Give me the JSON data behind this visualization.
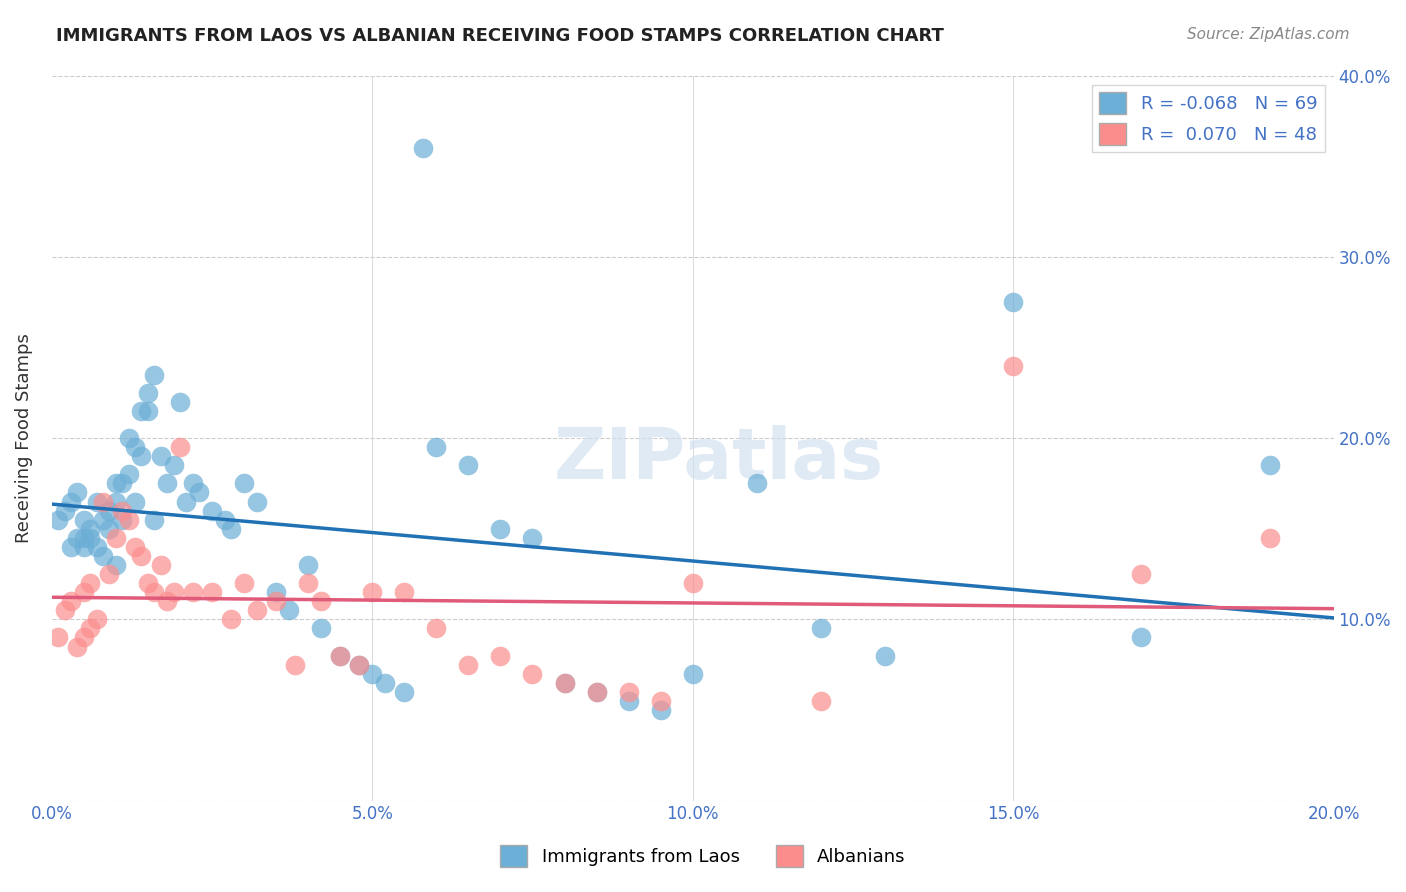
{
  "title": "IMMIGRANTS FROM LAOS VS ALBANIAN RECEIVING FOOD STAMPS CORRELATION CHART",
  "source": "Source: ZipAtlas.com",
  "ylabel_label": "Receiving Food Stamps",
  "x_min": 0.0,
  "x_max": 0.2,
  "y_min": 0.0,
  "y_max": 0.4,
  "x_ticks": [
    0.0,
    0.05,
    0.1,
    0.15,
    0.2
  ],
  "y_ticks": [
    0.0,
    0.1,
    0.2,
    0.3,
    0.4
  ],
  "x_tick_labels": [
    "0.0%",
    "5.0%",
    "10.0%",
    "15.0%",
    "20.0%"
  ],
  "y_tick_labels_right": [
    "",
    "10.0%",
    "20.0%",
    "30.0%",
    "40.0%"
  ],
  "legend_r_laos": "-0.068",
  "legend_n_laos": "69",
  "legend_r_albanian": "0.070",
  "legend_n_albanian": "48",
  "color_laos": "#6baed6",
  "color_albanian": "#fc8d8d",
  "color_laos_line": "#2171b5",
  "color_albanian_line": "#e05a7a",
  "background_color": "#ffffff",
  "laos_x": [
    0.001,
    0.002,
    0.003,
    0.003,
    0.004,
    0.004,
    0.005,
    0.005,
    0.005,
    0.006,
    0.006,
    0.007,
    0.007,
    0.008,
    0.008,
    0.009,
    0.009,
    0.01,
    0.01,
    0.01,
    0.011,
    0.011,
    0.012,
    0.012,
    0.013,
    0.013,
    0.014,
    0.014,
    0.015,
    0.015,
    0.016,
    0.016,
    0.017,
    0.018,
    0.019,
    0.02,
    0.021,
    0.022,
    0.023,
    0.025,
    0.027,
    0.028,
    0.03,
    0.032,
    0.035,
    0.037,
    0.04,
    0.042,
    0.045,
    0.048,
    0.05,
    0.052,
    0.055,
    0.058,
    0.06,
    0.065,
    0.07,
    0.075,
    0.08,
    0.085,
    0.09,
    0.095,
    0.1,
    0.11,
    0.12,
    0.13,
    0.15,
    0.17,
    0.19
  ],
  "laos_y": [
    0.155,
    0.16,
    0.165,
    0.14,
    0.17,
    0.145,
    0.155,
    0.145,
    0.14,
    0.15,
    0.145,
    0.165,
    0.14,
    0.155,
    0.135,
    0.16,
    0.15,
    0.175,
    0.165,
    0.13,
    0.175,
    0.155,
    0.2,
    0.18,
    0.195,
    0.165,
    0.215,
    0.19,
    0.225,
    0.215,
    0.235,
    0.155,
    0.19,
    0.175,
    0.185,
    0.22,
    0.165,
    0.175,
    0.17,
    0.16,
    0.155,
    0.15,
    0.175,
    0.165,
    0.115,
    0.105,
    0.13,
    0.095,
    0.08,
    0.075,
    0.07,
    0.065,
    0.06,
    0.36,
    0.195,
    0.185,
    0.15,
    0.145,
    0.065,
    0.06,
    0.055,
    0.05,
    0.07,
    0.175,
    0.095,
    0.08,
    0.275,
    0.09,
    0.185
  ],
  "albanian_x": [
    0.001,
    0.002,
    0.003,
    0.004,
    0.005,
    0.005,
    0.006,
    0.006,
    0.007,
    0.008,
    0.009,
    0.01,
    0.011,
    0.012,
    0.013,
    0.014,
    0.015,
    0.016,
    0.017,
    0.018,
    0.019,
    0.02,
    0.022,
    0.025,
    0.028,
    0.03,
    0.032,
    0.035,
    0.038,
    0.04,
    0.042,
    0.045,
    0.048,
    0.05,
    0.055,
    0.06,
    0.065,
    0.07,
    0.075,
    0.08,
    0.085,
    0.09,
    0.095,
    0.1,
    0.12,
    0.15,
    0.17,
    0.19
  ],
  "albanian_y": [
    0.09,
    0.105,
    0.11,
    0.085,
    0.115,
    0.09,
    0.095,
    0.12,
    0.1,
    0.165,
    0.125,
    0.145,
    0.16,
    0.155,
    0.14,
    0.135,
    0.12,
    0.115,
    0.13,
    0.11,
    0.115,
    0.195,
    0.115,
    0.115,
    0.1,
    0.12,
    0.105,
    0.11,
    0.075,
    0.12,
    0.11,
    0.08,
    0.075,
    0.115,
    0.115,
    0.095,
    0.075,
    0.08,
    0.07,
    0.065,
    0.06,
    0.06,
    0.055,
    0.12,
    0.055,
    0.24,
    0.125,
    0.145
  ]
}
